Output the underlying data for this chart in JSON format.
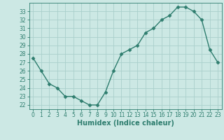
{
  "x": [
    0,
    1,
    2,
    3,
    4,
    5,
    6,
    7,
    8,
    9,
    10,
    11,
    12,
    13,
    14,
    15,
    16,
    17,
    18,
    19,
    20,
    21,
    22,
    23
  ],
  "y": [
    27.5,
    26.0,
    24.5,
    24.0,
    23.0,
    23.0,
    22.5,
    22.0,
    22.0,
    23.5,
    26.0,
    28.0,
    28.5,
    29.0,
    30.5,
    31.0,
    32.0,
    32.5,
    33.5,
    33.5,
    33.0,
    32.0,
    28.5,
    27.0
  ],
  "line_color": "#2e7d6e",
  "marker": "D",
  "marker_size": 2.5,
  "bg_color": "#cce8e4",
  "grid_color": "#aacfcb",
  "axis_color": "#2e7d6e",
  "xlabel": "Humidex (Indice chaleur)",
  "ylim": [
    21.5,
    34.0
  ],
  "xlim": [
    -0.5,
    23.5
  ],
  "yticks": [
    22,
    23,
    24,
    25,
    26,
    27,
    28,
    29,
    30,
    31,
    32,
    33
  ],
  "xticks": [
    0,
    1,
    2,
    3,
    4,
    5,
    6,
    7,
    8,
    9,
    10,
    11,
    12,
    13,
    14,
    15,
    16,
    17,
    18,
    19,
    20,
    21,
    22,
    23
  ],
  "tick_fontsize": 5.5,
  "label_fontsize": 7.0
}
